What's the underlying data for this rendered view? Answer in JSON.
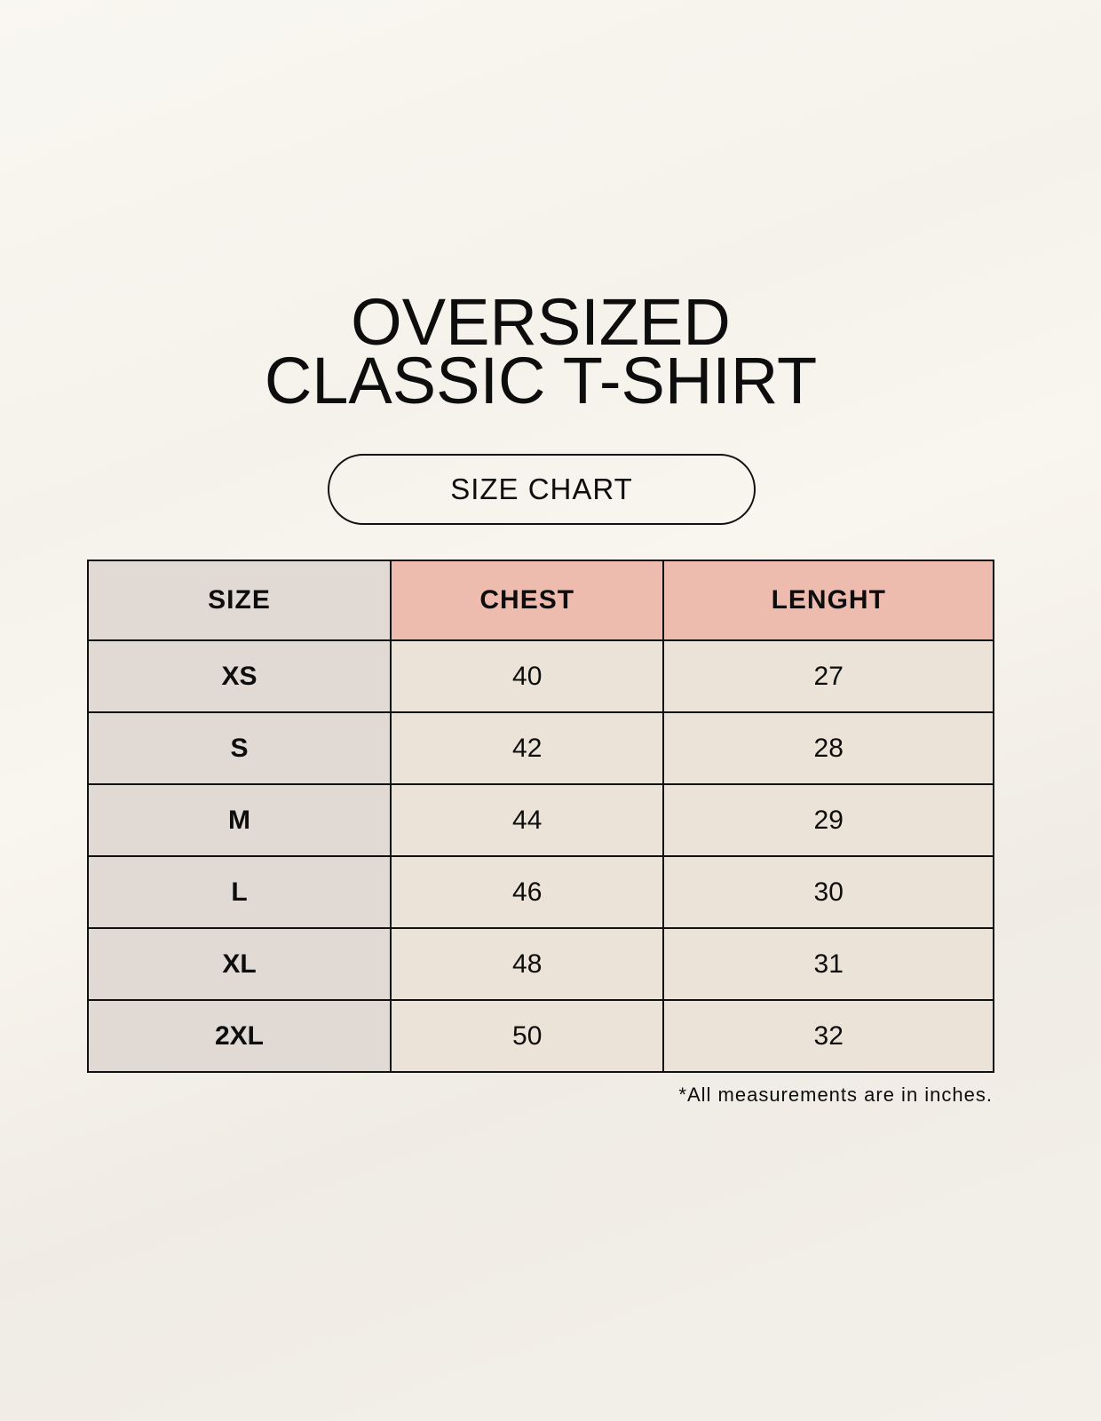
{
  "title": {
    "line1": "OVERSIZED",
    "line2": "CLASSIC T-SHIRT"
  },
  "badge": "SIZE CHART",
  "table": {
    "headers": [
      "SIZE",
      "CHEST",
      "LENGHT"
    ],
    "rows": [
      [
        "XS",
        "40",
        "27"
      ],
      [
        "S",
        "42",
        "28"
      ],
      [
        "M",
        "44",
        "29"
      ],
      [
        "L",
        "46",
        "30"
      ],
      [
        "XL",
        "48",
        "31"
      ],
      [
        "2XL",
        "50",
        "32"
      ]
    ]
  },
  "note": "*All measurements are in inches.",
  "colors": {
    "size_column": "#e1d9d3",
    "header_accent": "#eebcaf",
    "value_cells": "#ebe3d8"
  }
}
